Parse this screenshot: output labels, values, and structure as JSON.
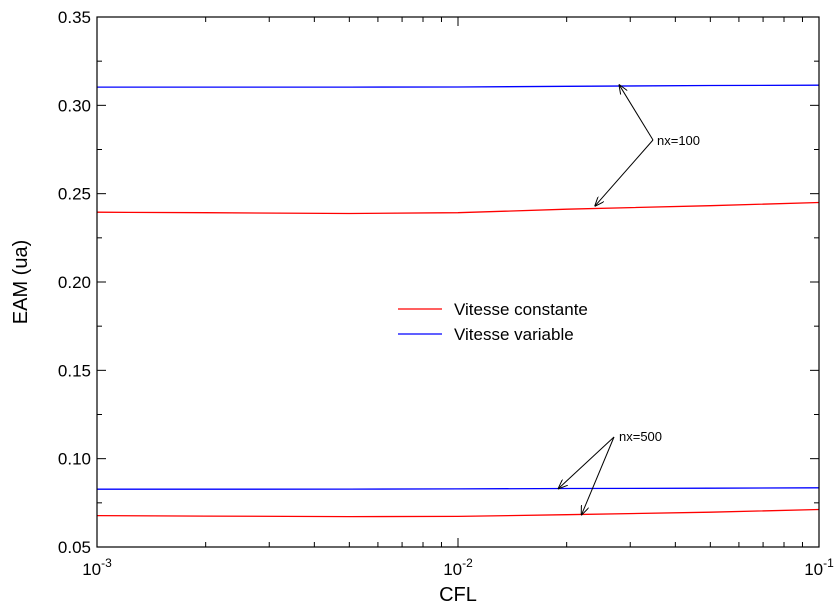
{
  "chart_data": {
    "type": "line",
    "title": "",
    "xlabel": "CFL",
    "ylabel": "EAM (ua)",
    "x_scale": "log",
    "xlim": [
      0.001,
      0.1
    ],
    "ylim": [
      0.05,
      0.35
    ],
    "grid": false,
    "legend_position": "center",
    "x_tick_labels": [
      {
        "value": 0.001,
        "base": "10",
        "exp": "-3"
      },
      {
        "value": 0.01,
        "base": "10",
        "exp": "-2"
      },
      {
        "value": 0.1,
        "base": "10",
        "exp": "-1"
      }
    ],
    "y_ticks": [
      0.05,
      0.1,
      0.15,
      0.2,
      0.25,
      0.3,
      0.35
    ],
    "y_tick_labels": [
      "0.05",
      "0.10",
      "0.15",
      "0.20",
      "0.25",
      "0.30",
      "0.35"
    ],
    "series": [
      {
        "name": "Vitesse constante",
        "color": "#ff0000",
        "group": "nx=100",
        "x": [
          0.001,
          0.002,
          0.005,
          0.01,
          0.02,
          0.05,
          0.1
        ],
        "y": [
          0.2395,
          0.2392,
          0.2388,
          0.2392,
          0.2412,
          0.2432,
          0.245
        ]
      },
      {
        "name": "Vitesse variable",
        "color": "#0000ff",
        "group": "nx=100",
        "x": [
          0.001,
          0.002,
          0.005,
          0.01,
          0.02,
          0.05,
          0.1
        ],
        "y": [
          0.3103,
          0.3103,
          0.3103,
          0.3104,
          0.3108,
          0.3112,
          0.3114
        ]
      },
      {
        "name": "Vitesse constante",
        "color": "#ff0000",
        "group": "nx=500",
        "x": [
          0.001,
          0.002,
          0.005,
          0.01,
          0.02,
          0.05,
          0.1
        ],
        "y": [
          0.0678,
          0.0675,
          0.0672,
          0.0673,
          0.0683,
          0.0697,
          0.0712
        ]
      },
      {
        "name": "Vitesse variable",
        "color": "#0000ff",
        "group": "nx=500",
        "x": [
          0.001,
          0.002,
          0.005,
          0.01,
          0.02,
          0.05,
          0.1
        ],
        "y": [
          0.0827,
          0.0827,
          0.0828,
          0.0829,
          0.0831,
          0.0833,
          0.0835
        ]
      }
    ],
    "legend": [
      {
        "label": "Vitesse constante",
        "color": "#ff0000"
      },
      {
        "label": "Vitesse variable",
        "color": "#0000ff"
      }
    ],
    "annotations": [
      {
        "text": "nx=100",
        "targets": [
          [
            0.028,
            0.3114
          ],
          [
            0.024,
            0.2432
          ]
        ]
      },
      {
        "text": "nx=500",
        "targets": [
          [
            0.019,
            0.0832
          ],
          [
            0.022,
            0.0684
          ]
        ]
      }
    ]
  }
}
